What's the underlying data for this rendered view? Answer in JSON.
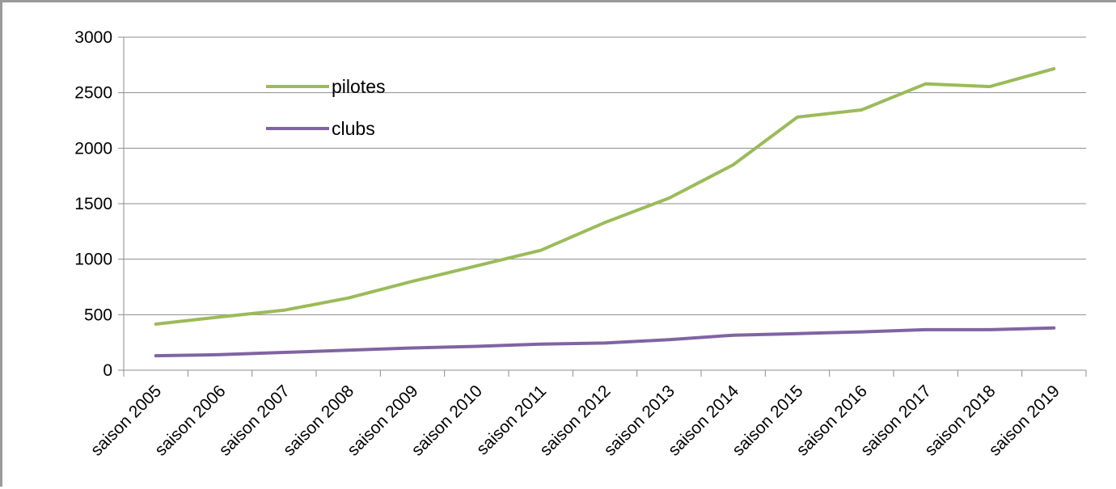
{
  "chart_data": {
    "type": "line",
    "title": "",
    "xlabel": "",
    "ylabel": "",
    "categories": [
      "saison 2005",
      "saison 2006",
      "saison 2007",
      "saison 2008",
      "saison 2009",
      "saison 2010",
      "saison 2011",
      "saison 2012",
      "saison 2013",
      "saison 2014",
      "saison 2015",
      "saison 2016",
      "saison 2017",
      "saison 2018",
      "saison 2019"
    ],
    "ylim": [
      0,
      3000
    ],
    "yticks": [
      0,
      500,
      1000,
      1500,
      2000,
      2500,
      3000
    ],
    "grid": "horizontal",
    "legend": "top-left",
    "series": [
      {
        "name": "pilotes",
        "color": "#9bbb59",
        "values": [
          415,
          480,
          540,
          650,
          800,
          940,
          1080,
          1330,
          1550,
          1850,
          2280,
          2345,
          2580,
          2555,
          2715
        ]
      },
      {
        "name": "clubs",
        "color": "#8064a2",
        "values": [
          130,
          140,
          160,
          180,
          200,
          215,
          235,
          245,
          275,
          315,
          330,
          345,
          365,
          365,
          380
        ]
      }
    ]
  }
}
